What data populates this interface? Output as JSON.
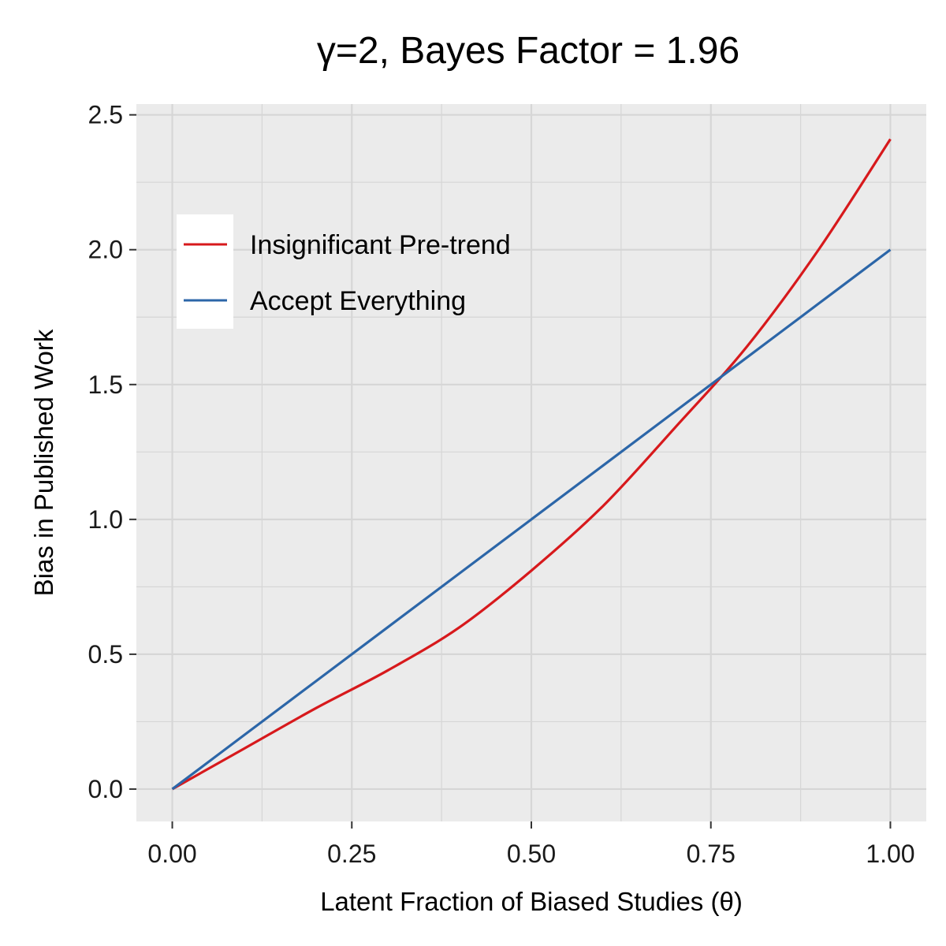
{
  "chart_data": {
    "type": "line",
    "title": "γ=2, Bayes Factor  = 1.96",
    "xlabel": "Latent Fraction of Biased Studies (θ)",
    "ylabel": "Bias in Published Work",
    "xlim": [
      -0.05,
      1.05
    ],
    "ylim": [
      -0.12,
      2.54
    ],
    "x_ticks": [
      0.0,
      0.25,
      0.5,
      0.75,
      1.0
    ],
    "x_tick_labels": [
      "0.00",
      "0.25",
      "0.50",
      "0.75",
      "1.00"
    ],
    "y_ticks": [
      0.0,
      0.5,
      1.0,
      1.5,
      2.0,
      2.5
    ],
    "y_tick_labels": [
      "0.0",
      "0.5",
      "1.0",
      "1.5",
      "2.0",
      "2.5"
    ],
    "grid": true,
    "legend_position": "top-left",
    "x": [
      0.0,
      0.1,
      0.2,
      0.3,
      0.4,
      0.5,
      0.6,
      0.7,
      0.8,
      0.9,
      1.0
    ],
    "series": [
      {
        "name": "Insignificant Pre-trend",
        "color": "#d7191c",
        "values": [
          0.0,
          0.15,
          0.3,
          0.44,
          0.6,
          0.81,
          1.05,
          1.34,
          1.64,
          2.0,
          2.41
        ]
      },
      {
        "name": "Accept Everything",
        "color": "#2c66a8",
        "values": [
          0.0,
          0.2,
          0.4,
          0.6,
          0.8,
          1.0,
          1.2,
          1.4,
          1.6,
          1.8,
          2.0
        ]
      }
    ]
  },
  "colors": {
    "panel_background": "#ebebeb",
    "grid_line": "#d6d6d6"
  }
}
